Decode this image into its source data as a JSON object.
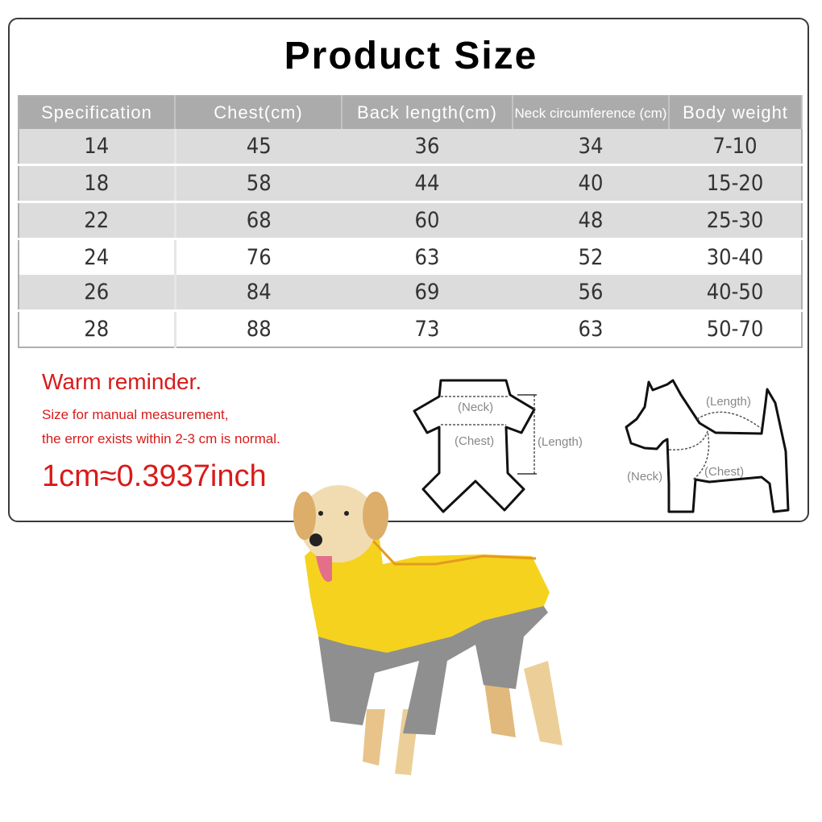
{
  "title": "Product Size",
  "table": {
    "headers": [
      "Specification",
      "Chest(cm)",
      "Back length(cm)",
      "Neck circumference (cm)",
      "Body weight"
    ],
    "rows": [
      [
        "14",
        "45",
        "36",
        "34",
        "7-10"
      ],
      [
        "18",
        "58",
        "44",
        "40",
        "15-20"
      ],
      [
        "22",
        "68",
        "60",
        "48",
        "25-30"
      ],
      [
        "24",
        "76",
        "63",
        "52",
        "30-40"
      ],
      [
        "26",
        "84",
        "69",
        "56",
        "40-50"
      ],
      [
        "28",
        "88",
        "73",
        "63",
        "50-70"
      ]
    ]
  },
  "reminder": {
    "heading": "Warm reminder.",
    "line1": "Size for manual measurement,",
    "line2": "the error exists within 2-3 cm is normal.",
    "conversion": "1cm≈0.3937inch"
  },
  "diagrams": {
    "garment": {
      "neck": "(Neck)",
      "chest": "(Chest)",
      "length": "(Length)"
    },
    "dog": {
      "length": "(Length)",
      "neck": "(Neck)",
      "chest": "(Chest)"
    }
  },
  "colors": {
    "reminder": "#d91a1a",
    "header": "#ababab",
    "coat_yellow": "#f5d21e",
    "coat_gray": "#8f8f8f"
  }
}
